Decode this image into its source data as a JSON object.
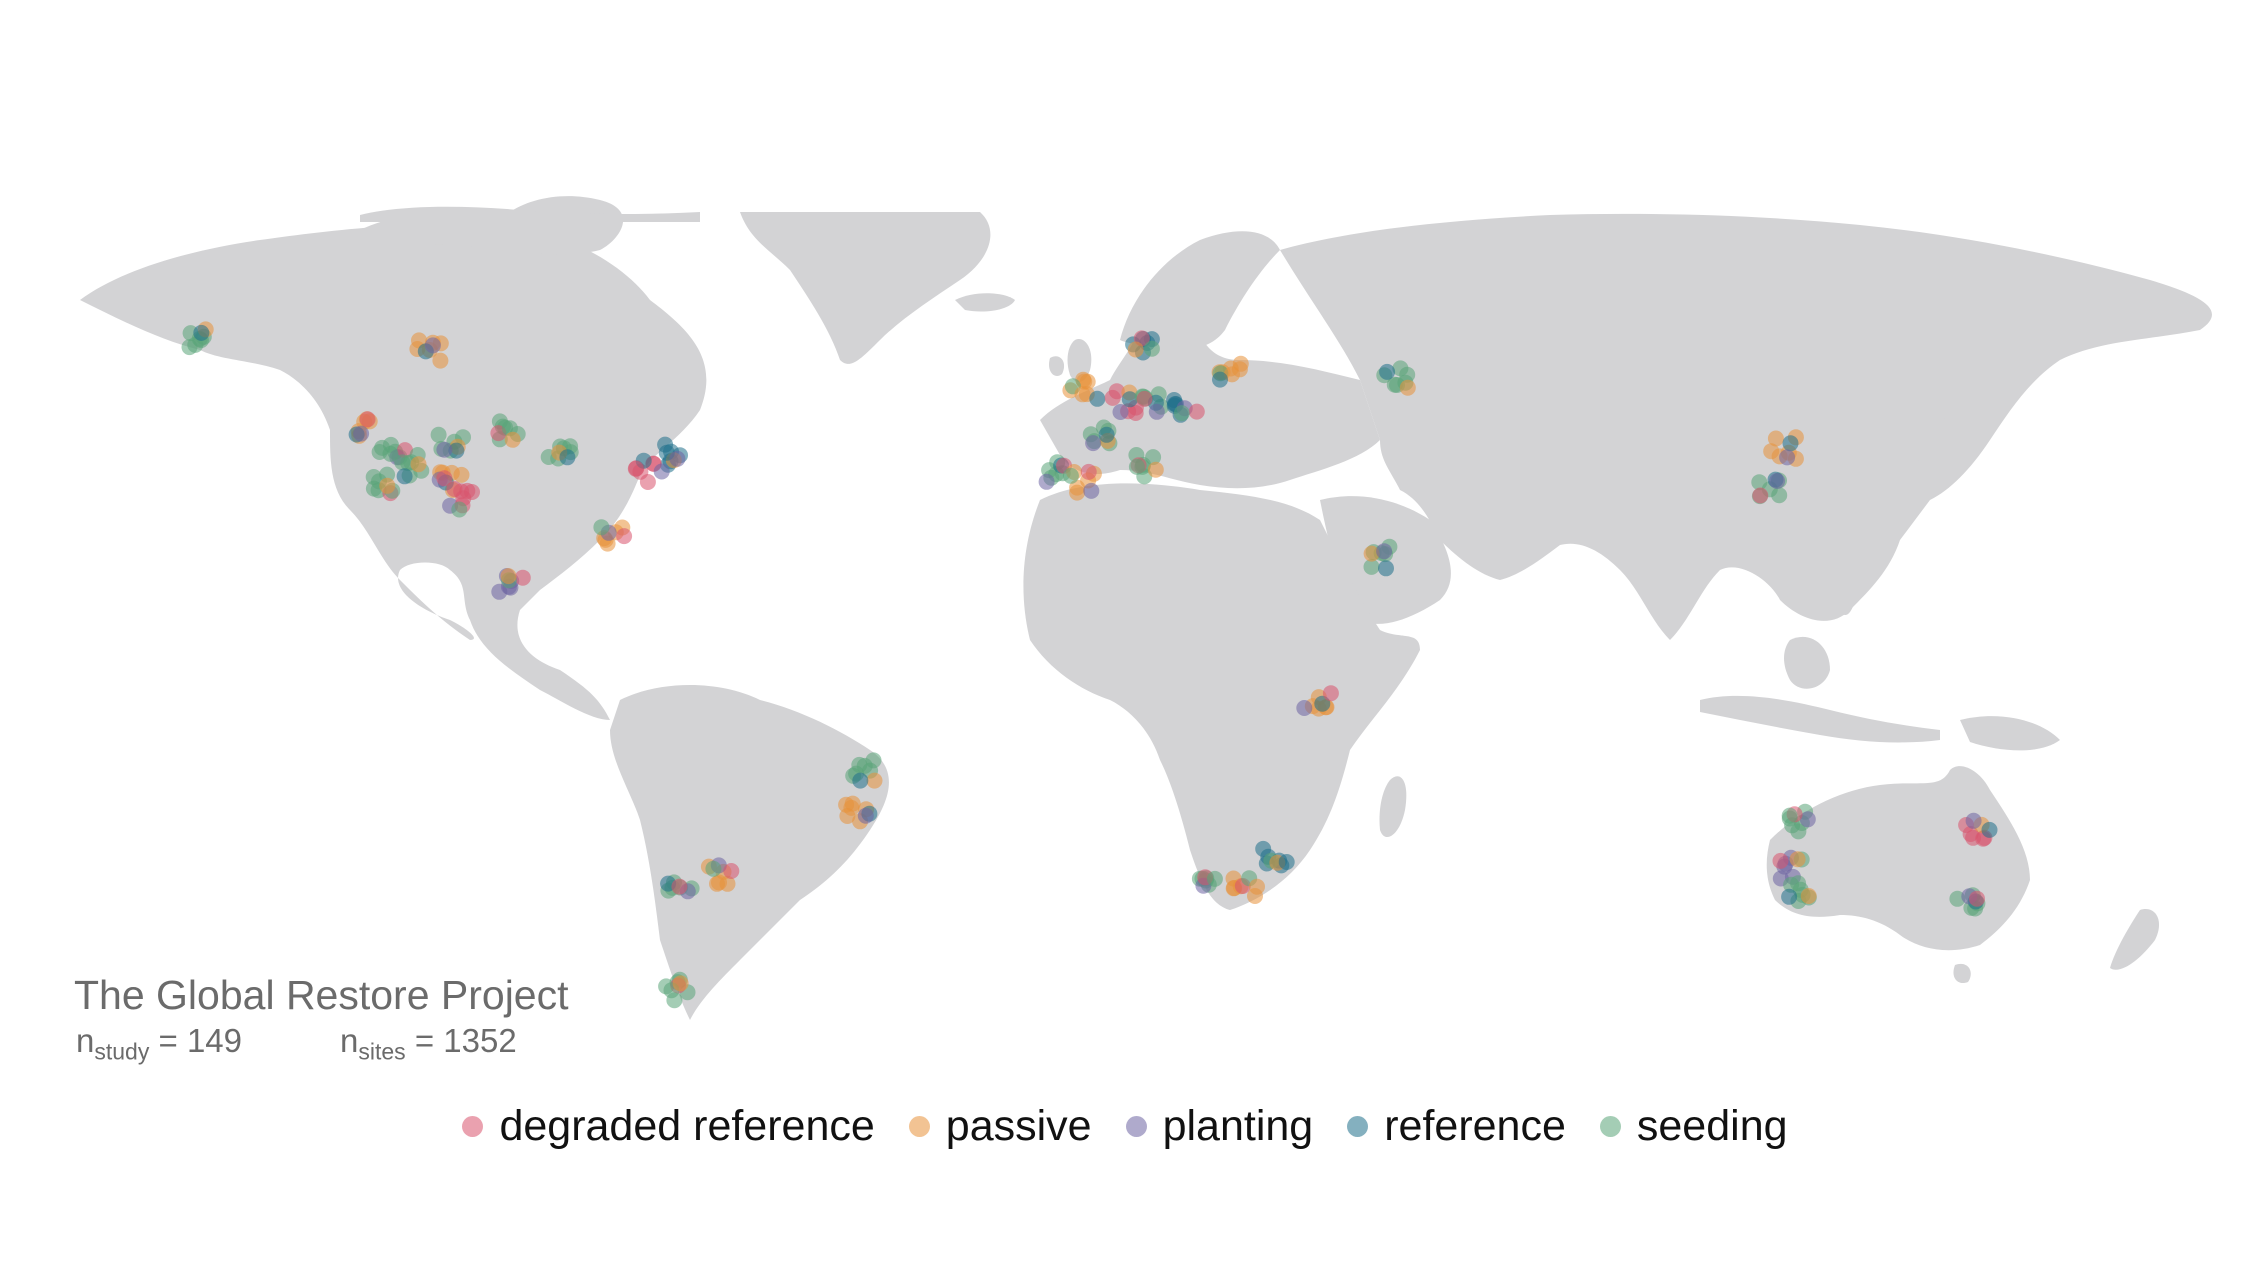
{
  "title": "The Global Restore Project",
  "stats": {
    "study_label": "n",
    "study_sub": "study",
    "study_value": "= 149",
    "sites_label": "n",
    "sites_sub": "sites",
    "sites_value": "= 1352"
  },
  "legend": [
    {
      "label": "degraded reference",
      "color": "#d9546e"
    },
    {
      "label": "passive",
      "color": "#e8923a"
    },
    {
      "label": "planting",
      "color": "#6d64a3"
    },
    {
      "label": "reference",
      "color": "#1f6f8b"
    },
    {
      "label": "seeding",
      "color": "#5aa478"
    }
  ],
  "colors": {
    "land": "#d3d3d5",
    "background": "#ffffff"
  },
  "site_clusters": [
    {
      "region": "Alaska",
      "lon": -150,
      "lat": 62,
      "category": "seeding"
    },
    {
      "region": "Northern Canada",
      "lon": -112,
      "lat": 60,
      "category": "passive"
    },
    {
      "region": "Pacific Northwest",
      "lon": -122,
      "lat": 47,
      "category": "passive"
    },
    {
      "region": "Western USA",
      "lon": -118,
      "lat": 42,
      "category": "seeding"
    },
    {
      "region": "California",
      "lon": -120,
      "lat": 37,
      "category": "seeding"
    },
    {
      "region": "Great Basin",
      "lon": -114,
      "lat": 40,
      "category": "seeding"
    },
    {
      "region": "Rocky Mountains",
      "lon": -108,
      "lat": 44,
      "category": "seeding"
    },
    {
      "region": "Colorado Plateau",
      "lon": -108,
      "lat": 37,
      "category": "passive"
    },
    {
      "region": "Southwest USA",
      "lon": -106,
      "lat": 34,
      "category": "degraded reference"
    },
    {
      "region": "Great Plains",
      "lon": -98,
      "lat": 46,
      "category": "seeding"
    },
    {
      "region": "Midwest USA",
      "lon": -90,
      "lat": 43,
      "category": "seeding"
    },
    {
      "region": "Northeast USA",
      "lon": -72,
      "lat": 42,
      "category": "reference"
    },
    {
      "region": "Mid-Atlantic USA",
      "lon": -75,
      "lat": 39,
      "category": "degraded reference"
    },
    {
      "region": "Florida",
      "lon": -81,
      "lat": 28,
      "category": "passive"
    },
    {
      "region": "Mexico",
      "lon": -98,
      "lat": 19,
      "category": "planting"
    },
    {
      "region": "Eastern Brazil",
      "lon": -39,
      "lat": -13,
      "category": "seeding"
    },
    {
      "region": "Southeast Brazil",
      "lon": -40,
      "lat": -20,
      "category": "passive"
    },
    {
      "region": "Central Argentina",
      "lon": -70,
      "lat": -33,
      "category": "seeding"
    },
    {
      "region": "Northern Argentina",
      "lon": -63,
      "lat": -31,
      "category": "passive"
    },
    {
      "region": "Patagonia",
      "lon": -70,
      "lat": -51,
      "category": "seeding"
    },
    {
      "region": "Great Britain",
      "lon": -2,
      "lat": 53,
      "category": "passive"
    },
    {
      "region": "Benelux",
      "lon": 5,
      "lat": 51,
      "category": "degraded reference"
    },
    {
      "region": "Germany",
      "lon": 10,
      "lat": 51,
      "category": "seeding"
    },
    {
      "region": "Czechia",
      "lon": 15,
      "lat": 50,
      "category": "reference"
    },
    {
      "region": "Scandinavia",
      "lon": 8,
      "lat": 61,
      "category": "reference"
    },
    {
      "region": "Baltic",
      "lon": 23,
      "lat": 56,
      "category": "passive"
    },
    {
      "region": "France",
      "lon": 0,
      "lat": 45,
      "category": "seeding"
    },
    {
      "region": "Iberia",
      "lon": -6,
      "lat": 39,
      "category": "seeding"
    },
    {
      "region": "Southern Spain",
      "lon": -2,
      "lat": 37,
      "category": "passive"
    },
    {
      "region": "Sardinia",
      "lon": 9,
      "lat": 40,
      "category": "seeding"
    },
    {
      "region": "Russia",
      "lon": 50,
      "lat": 55,
      "category": "seeding"
    },
    {
      "region": "Arabian Peninsula",
      "lon": 47,
      "lat": 24,
      "category": "seeding"
    },
    {
      "region": "East Africa",
      "lon": 37,
      "lat": -1,
      "category": "passive"
    },
    {
      "region": "Western Cape",
      "lon": 19,
      "lat": -33,
      "category": "seeding"
    },
    {
      "region": "Eastern Cape",
      "lon": 25,
      "lat": -33,
      "category": "passive"
    },
    {
      "region": "KwaZulu-Natal",
      "lon": 30,
      "lat": -28,
      "category": "reference"
    },
    {
      "region": "Inner Mongolia",
      "lon": 115,
      "lat": 43,
      "category": "passive"
    },
    {
      "region": "Northern China",
      "lon": 113,
      "lat": 36,
      "category": "seeding"
    },
    {
      "region": "Western Australia North",
      "lon": 118,
      "lat": -22,
      "category": "seeding"
    },
    {
      "region": "Western Australia",
      "lon": 116,
      "lat": -30,
      "category": "planting"
    },
    {
      "region": "Southwest Australia",
      "lon": 118,
      "lat": -34,
      "category": "seeding"
    },
    {
      "region": "Queensland",
      "lon": 148,
      "lat": -23,
      "category": "degraded reference"
    },
    {
      "region": "Victoria",
      "lon": 146,
      "lat": -36,
      "category": "seeding"
    }
  ]
}
